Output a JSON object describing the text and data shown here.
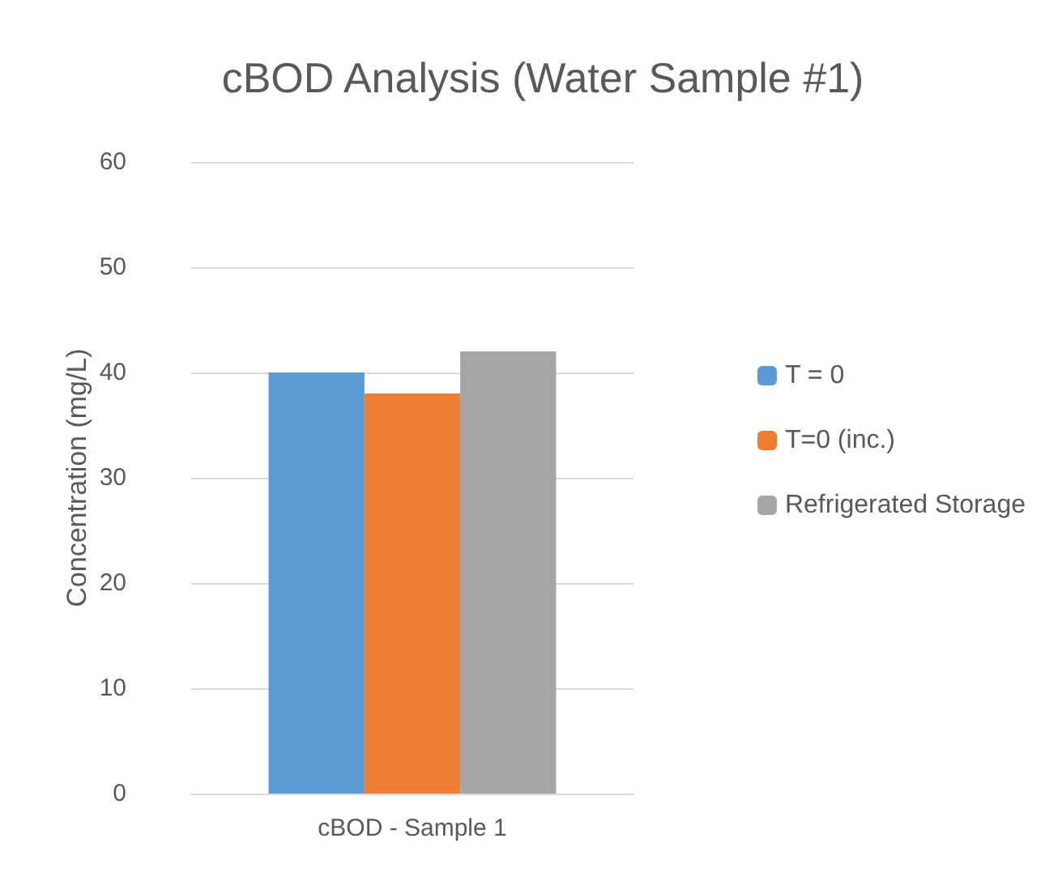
{
  "chart_data": {
    "type": "bar",
    "title": "cBOD Analysis (Water Sample #1)",
    "ylabel": "Concentration (mg/L)",
    "categories": [
      "cBOD - Sample 1"
    ],
    "series": [
      {
        "name": "T = 0",
        "color": "#5b9bd5",
        "values": [
          40
        ]
      },
      {
        "name": "T=0 (inc.)",
        "color": "#ed7d31",
        "values": [
          38
        ]
      },
      {
        "name": "Refrigerated Storage",
        "color": "#a5a5a5",
        "values": [
          42
        ]
      }
    ],
    "ylim": [
      0,
      60
    ],
    "yticks": [
      0,
      10,
      20,
      30,
      40,
      50,
      60
    ],
    "grid": "y",
    "legend": "right"
  }
}
